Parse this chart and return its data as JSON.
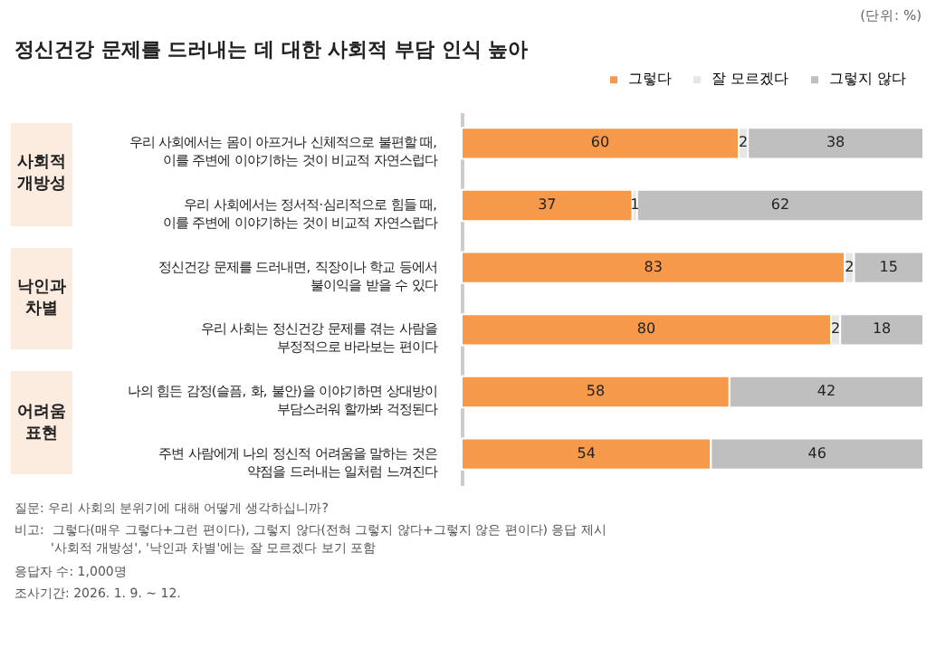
{
  "chart_data": {
    "type": "bar",
    "orientation": "horizontal",
    "stacked": true,
    "data_labels": true,
    "legend": "top right",
    "grid": false,
    "tick_labels": "y",
    "title": "정신건강 문제를 드러내는 데 대한 사회적 부담 인식 높아",
    "categories": [
      "우리 사회에서는 몸이 아프거나 신체적으로 불편할 때,\n이를 주변에 이야기하는 것이 비교적 자연스럽다",
      "우리 사회에서는 정서적·심리적으로 힘들 때,\n이를 주변에 이야기하는 것이 비교적 자연스럽다",
      "정신건강 문제를 드러내면, 직장이나 학교 등에서\n불이익을 받을 수 있다",
      "우리 사회는 정신건강 문제를 겪는 사람을\n부정적으로 바라보는 편이다",
      "나의 힘든 감정(슬픔, 화, 불안)을 이야기하면 상대방이\n부담스러워 할까봐 걱정된다",
      "주변 사람에게 나의 정신적 어려움을 말하는 것은\n약점을 드러내는 일처럼 느껴진다"
    ],
    "series": [
      {
        "name": "그렇다",
        "color": "#f7994a",
        "values": [
          60,
          37,
          83,
          80,
          58,
          54
        ]
      },
      {
        "name": "잘 모르겠다",
        "color": "#e6e6e6",
        "values": [
          2,
          1,
          2,
          2,
          null,
          null
        ]
      },
      {
        "name": "그렇지 않다",
        "color": "#bfbfbf",
        "values": [
          38,
          62,
          15,
          18,
          42,
          46
        ]
      }
    ],
    "annotations": [
      "(단위: %)",
      "사회적\n개방성",
      "낙인과\n차별",
      "어려움\n표현",
      "질문: 우리 사회의 분위기에 대해 어떻게 생각하십니까?",
      "비고:  그렇다(매우 그렇다+그런 편이다), 그렇지 않다(전혀 그렇지 않다+그렇지 않은 편이다) 응답 제시\n         '사회적 개방성', '낙인과 차별'에는 잘 모르겠다 보기 포함",
      "응답자 수: 1,000명",
      "조사기간: 2026. 1. 9. ~ 12."
    ]
  }
}
